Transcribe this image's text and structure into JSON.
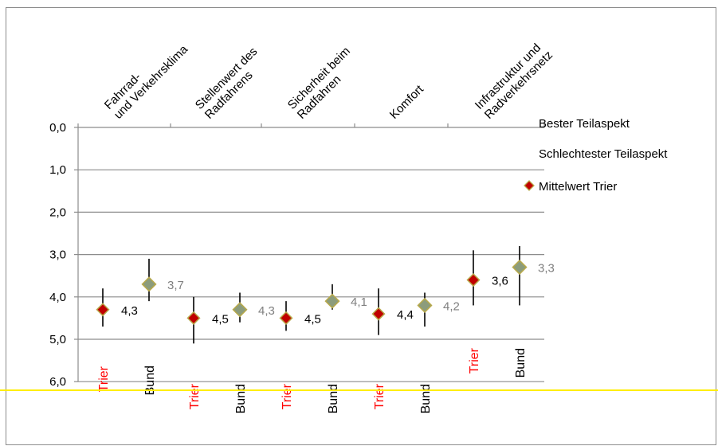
{
  "chart_data": {
    "type": "scatter",
    "title": "",
    "y_axis": {
      "ticks": [
        "0,0",
        "1,0",
        "2,0",
        "3,0",
        "4,0",
        "5,0",
        "6,0"
      ],
      "range": [
        0,
        6
      ],
      "inverted": true,
      "grid": true
    },
    "categories": [
      [
        "Fahrrad-",
        "und Verkehrsklima"
      ],
      [
        "Stellenwert des",
        "Radfahrens"
      ],
      [
        "Sicherheit beim",
        "Radfahren"
      ],
      [
        "Komfort"
      ],
      [
        "Infrastruktur und",
        "Radverkehrsnetz"
      ]
    ],
    "group_labels": [
      "Trier",
      "Bund"
    ],
    "points": [
      {
        "category": 0,
        "group": "Trier",
        "mean": 4.3,
        "best": 3.8,
        "worst": 4.7,
        "label": "4,3"
      },
      {
        "category": 0,
        "group": "Bund",
        "mean": 3.7,
        "best": 3.1,
        "worst": 4.1,
        "label": "3,7"
      },
      {
        "category": 1,
        "group": "Trier",
        "mean": 4.5,
        "best": 4.0,
        "worst": 5.1,
        "label": "4,5"
      },
      {
        "category": 1,
        "group": "Bund",
        "mean": 4.3,
        "best": 3.9,
        "worst": 4.6,
        "label": "4,3"
      },
      {
        "category": 2,
        "group": "Trier",
        "mean": 4.5,
        "best": 4.1,
        "worst": 4.8,
        "label": "4,5"
      },
      {
        "category": 2,
        "group": "Bund",
        "mean": 4.1,
        "best": 3.7,
        "worst": 4.3,
        "label": "4,1"
      },
      {
        "category": 3,
        "group": "Trier",
        "mean": 4.4,
        "best": 3.8,
        "worst": 4.9,
        "label": "4,4"
      },
      {
        "category": 3,
        "group": "Bund",
        "mean": 4.2,
        "best": 3.9,
        "worst": 4.7,
        "label": "4,2"
      },
      {
        "category": 4,
        "group": "Trier",
        "mean": 3.6,
        "best": 2.9,
        "worst": 4.2,
        "label": "3,6"
      },
      {
        "category": 4,
        "group": "Bund",
        "mean": 3.3,
        "best": 2.8,
        "worst": 4.2,
        "label": "3,3"
      }
    ],
    "legend": {
      "position": "right",
      "items": [
        "Bester Teilaspekt",
        "Schlechtester Teilaspekt",
        "Mittelwert Trier"
      ]
    },
    "colors": {
      "trier_marker": "#c00000",
      "bund_marker": "#8c9c7c",
      "marker_border": "#b8a94a",
      "trier_label": "#ff0000",
      "bund_label": "#000000",
      "trier_value": "#000000",
      "bund_value": "#7f7f7f",
      "grid": "#8c8c8c",
      "whisker": "#000000",
      "highlight_line": "#ffee00"
    }
  }
}
